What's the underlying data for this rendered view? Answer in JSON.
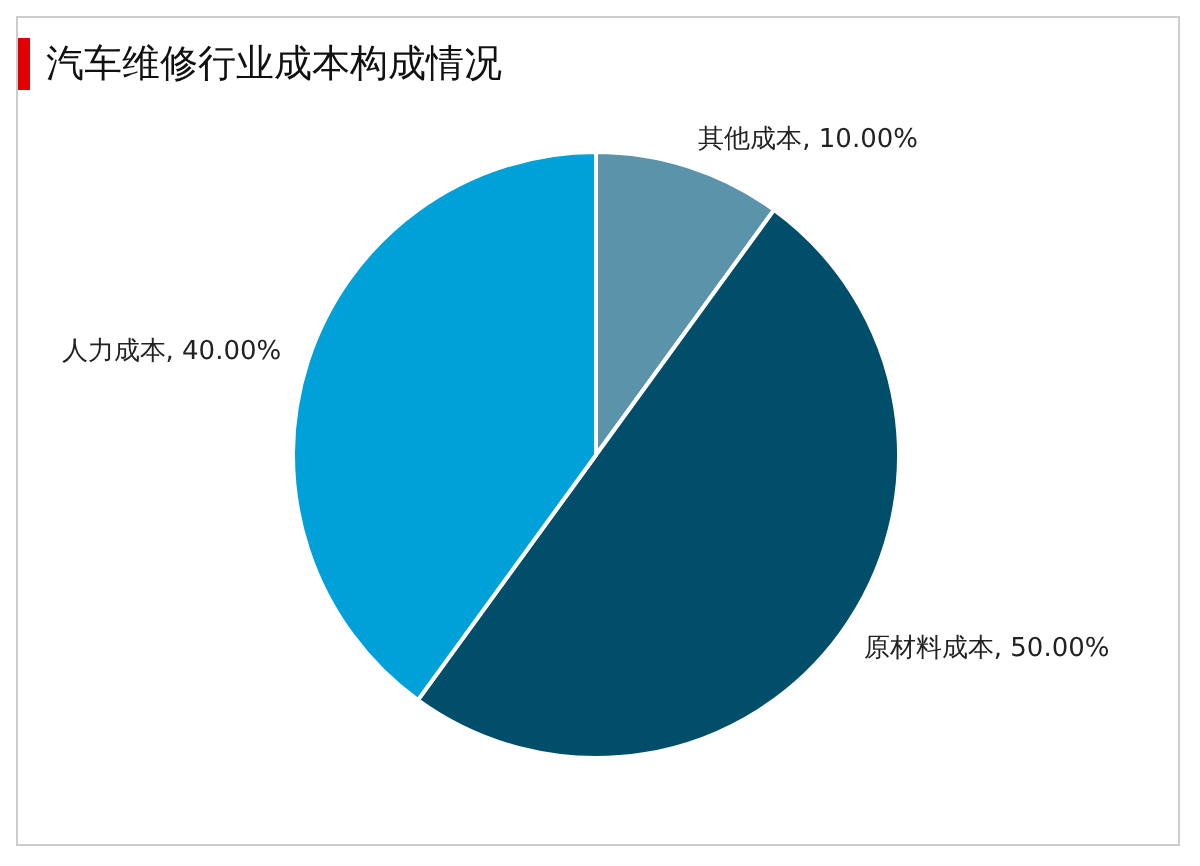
{
  "chart_data": {
    "type": "pie",
    "title": "汽车维修行业成本构成情况",
    "categories": [
      "其他成本",
      "原材料成本",
      "人力成本"
    ],
    "values": [
      10,
      50,
      40
    ],
    "colors": [
      "#5b93ab",
      "#004e6a",
      "#00a0d8"
    ],
    "value_labels": [
      "10.00%",
      "50.00%",
      "40.00%"
    ],
    "legend": false
  }
}
